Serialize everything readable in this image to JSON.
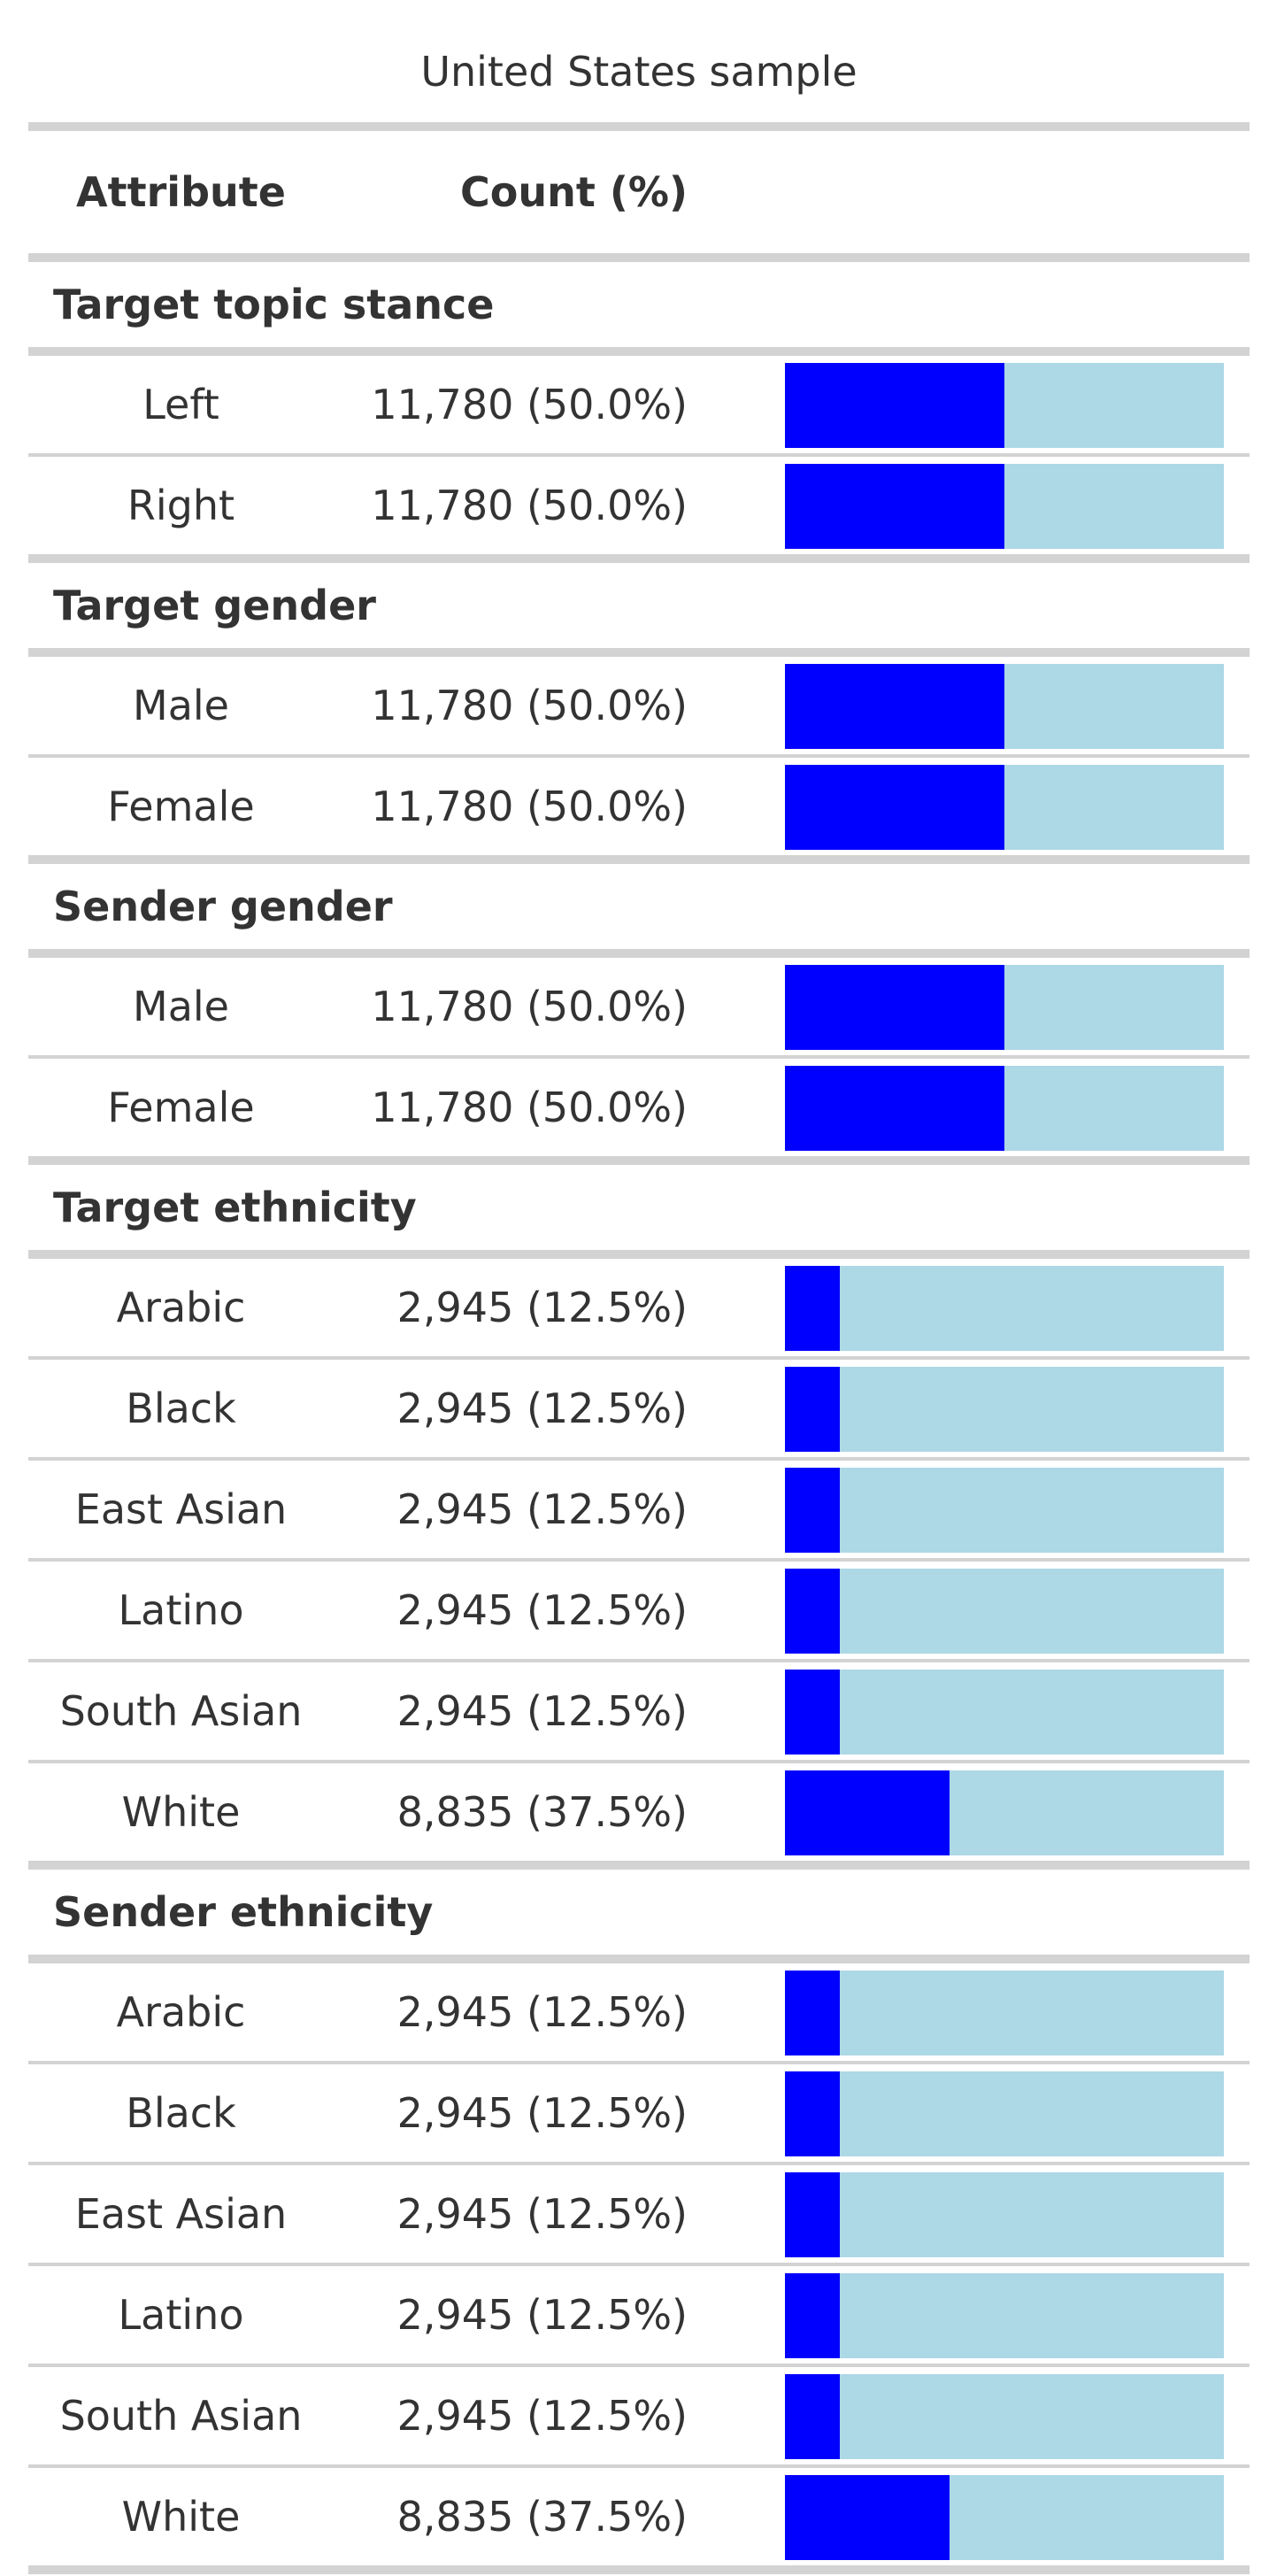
{
  "chart_data": {
    "type": "table",
    "title": "United States sample",
    "columns": [
      "Attribute",
      "Count (%)"
    ],
    "groups": [
      {
        "name": "Target topic stance",
        "rows": [
          {
            "label": "Left",
            "count_text": "11,780 (50.0%)",
            "count": 11780,
            "percent": 50.0
          },
          {
            "label": "Right",
            "count_text": "11,780 (50.0%)",
            "count": 11780,
            "percent": 50.0
          }
        ]
      },
      {
        "name": "Target gender",
        "rows": [
          {
            "label": "Male",
            "count_text": "11,780 (50.0%)",
            "count": 11780,
            "percent": 50.0
          },
          {
            "label": "Female",
            "count_text": "11,780 (50.0%)",
            "count": 11780,
            "percent": 50.0
          }
        ]
      },
      {
        "name": "Sender gender",
        "rows": [
          {
            "label": "Male",
            "count_text": "11,780 (50.0%)",
            "count": 11780,
            "percent": 50.0
          },
          {
            "label": "Female",
            "count_text": "11,780 (50.0%)",
            "count": 11780,
            "percent": 50.0
          }
        ]
      },
      {
        "name": "Target ethnicity",
        "rows": [
          {
            "label": "Arabic",
            "count_text": "2,945 (12.5%)",
            "count": 2945,
            "percent": 12.5
          },
          {
            "label": "Black",
            "count_text": "2,945 (12.5%)",
            "count": 2945,
            "percent": 12.5
          },
          {
            "label": "East Asian",
            "count_text": "2,945 (12.5%)",
            "count": 2945,
            "percent": 12.5
          },
          {
            "label": "Latino",
            "count_text": "2,945 (12.5%)",
            "count": 2945,
            "percent": 12.5
          },
          {
            "label": "South Asian",
            "count_text": "2,945 (12.5%)",
            "count": 2945,
            "percent": 12.5
          },
          {
            "label": "White",
            "count_text": "8,835 (37.5%)",
            "count": 8835,
            "percent": 37.5
          }
        ]
      },
      {
        "name": "Sender ethnicity",
        "rows": [
          {
            "label": "Arabic",
            "count_text": "2,945 (12.5%)",
            "count": 2945,
            "percent": 12.5
          },
          {
            "label": "Black",
            "count_text": "2,945 (12.5%)",
            "count": 2945,
            "percent": 12.5
          },
          {
            "label": "East Asian",
            "count_text": "2,945 (12.5%)",
            "count": 2945,
            "percent": 12.5
          },
          {
            "label": "Latino",
            "count_text": "2,945 (12.5%)",
            "count": 2945,
            "percent": 12.5
          },
          {
            "label": "South Asian",
            "count_text": "2,945 (12.5%)",
            "count": 2945,
            "percent": 12.5
          },
          {
            "label": "White",
            "count_text": "8,835 (37.5%)",
            "count": 8835,
            "percent": 37.5
          }
        ]
      }
    ],
    "colors": {
      "bar_fill": "#0000ff",
      "bar_track": "#add8e6",
      "rule": "#d3d3d3",
      "text": "#333333"
    }
  }
}
